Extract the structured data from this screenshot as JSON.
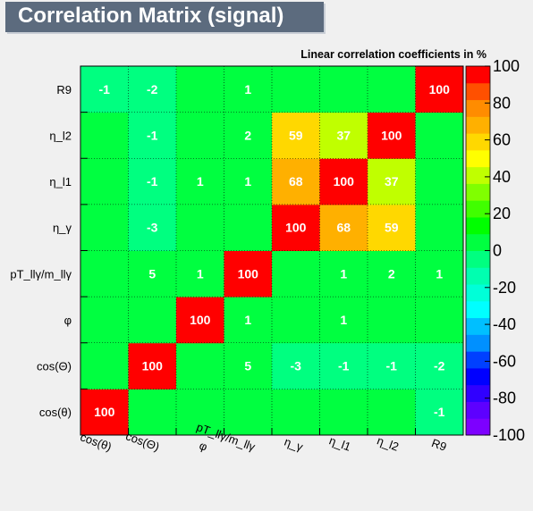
{
  "header": {
    "title": "Correlation Matrix (signal)"
  },
  "subtitle": "Linear correlation coefficients in %",
  "chart_data": {
    "type": "heatmap",
    "x_labels": [
      "cos(θ)",
      "cos(Θ)",
      "φ",
      "pT_llγ/m_llγ",
      "η_γ",
      "η_l1",
      "η_l2",
      "R9"
    ],
    "y_labels_bottom_to_top": [
      "cos(θ)",
      "cos(Θ)",
      "φ",
      "pT_llγ/m_llγ",
      "η_γ",
      "η_l1",
      "η_l2",
      "R9"
    ],
    "matrix_rows_bottom_to_top": [
      [
        100,
        0,
        0,
        0,
        0,
        0,
        0,
        -1
      ],
      [
        0,
        100,
        0,
        5,
        -3,
        -1,
        -1,
        -2
      ],
      [
        0,
        0,
        100,
        1,
        0,
        1,
        0,
        0
      ],
      [
        0,
        5,
        1,
        100,
        0,
        1,
        2,
        1
      ],
      [
        0,
        -3,
        0,
        0,
        100,
        68,
        59,
        0
      ],
      [
        0,
        -1,
        1,
        1,
        68,
        100,
        37,
        0
      ],
      [
        0,
        -1,
        0,
        2,
        59,
        37,
        100,
        0
      ],
      [
        -1,
        -2,
        0,
        1,
        0,
        0,
        0,
        100
      ]
    ],
    "zlim": [
      -100,
      100
    ],
    "palette_ticks": [
      "100",
      "80",
      "60",
      "40",
      "20",
      "0",
      "-20",
      "-40",
      "-60",
      "-80",
      "-100"
    ],
    "grid": true,
    "palette_colors": [
      "#7d00ff",
      "#5d00ff",
      "#3000ff",
      "#0000ff",
      "#0040ff",
      "#0090ff",
      "#00bfff",
      "#00ffff",
      "#00ffd8",
      "#00ffb0",
      "#00ff80",
      "#00ff40",
      "#00ff00",
      "#40ff00",
      "#80ff00",
      "#c0ff00",
      "#ffff00",
      "#ffd800",
      "#ffb000",
      "#ff8c00",
      "#ff5000",
      "#ff0000"
    ]
  }
}
